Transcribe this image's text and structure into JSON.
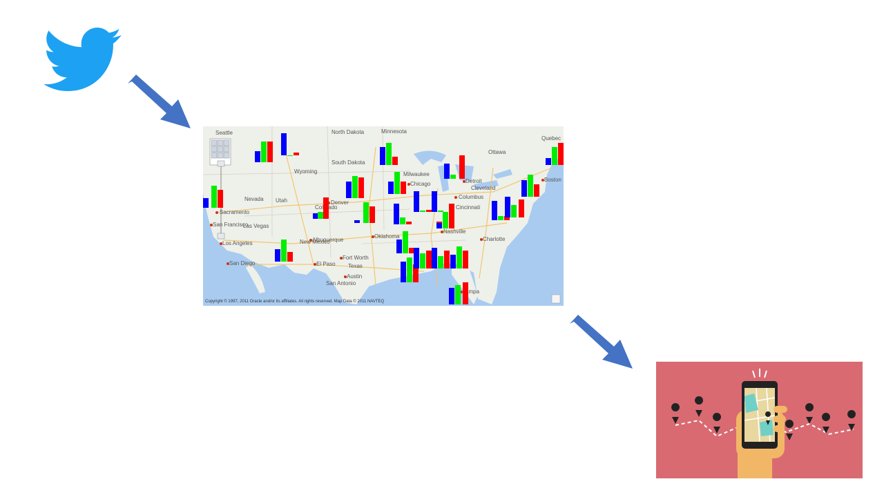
{
  "colors": {
    "twitter": "#1da1f2",
    "arrow": "#4472c4",
    "bar_series": [
      "#0000ff",
      "#00ee00",
      "#ff0000"
    ],
    "panel_bg": "#d96a72"
  },
  "icons": {
    "source": "twitter-bird-icon",
    "destination": "phone-map-navigation-icon"
  },
  "map": {
    "labels": {
      "north_dakota": "North Dakota",
      "minnesota": "Minnesota",
      "south_dakota": "South Dakota",
      "wyoming": "Wyoming",
      "utah": "Utah",
      "nevada": "Nevada",
      "colorado": "Colorado",
      "new_mexico": "New Mexico",
      "texas": "Texas",
      "oklahoma": "Oklahoma",
      "denver": "Denver",
      "sacramento": "Sacramento",
      "san_francisco": "San Francisco",
      "los_angeles": "Los Angeles",
      "las_vegas": "Las Vegas",
      "san_diego": "San Diego",
      "albuquerque": "Albuquerque",
      "el_paso": "El Paso",
      "austin": "Austin",
      "san_antonio": "San Antonio",
      "fort_worth": "Fort Worth",
      "chicago": "Chicago",
      "milwaukee": "Milwaukee",
      "detroit": "Detroit",
      "cleveland": "Cleveland",
      "columbus": "Columbus",
      "cincinnati": "Cincinnati",
      "nashville": "Nashville",
      "charlotte": "Charlotte",
      "ottawa": "Ottawa",
      "quebec": "Quebec",
      "boston": "Boston",
      "seattle": "Seattle",
      "tampa": "Tampa"
    },
    "copyright": "Copyright © 1997, 2011 Oracle and/or its affiliates. All rights reserved. Map Data © 2011 NAVTEQ"
  }
}
